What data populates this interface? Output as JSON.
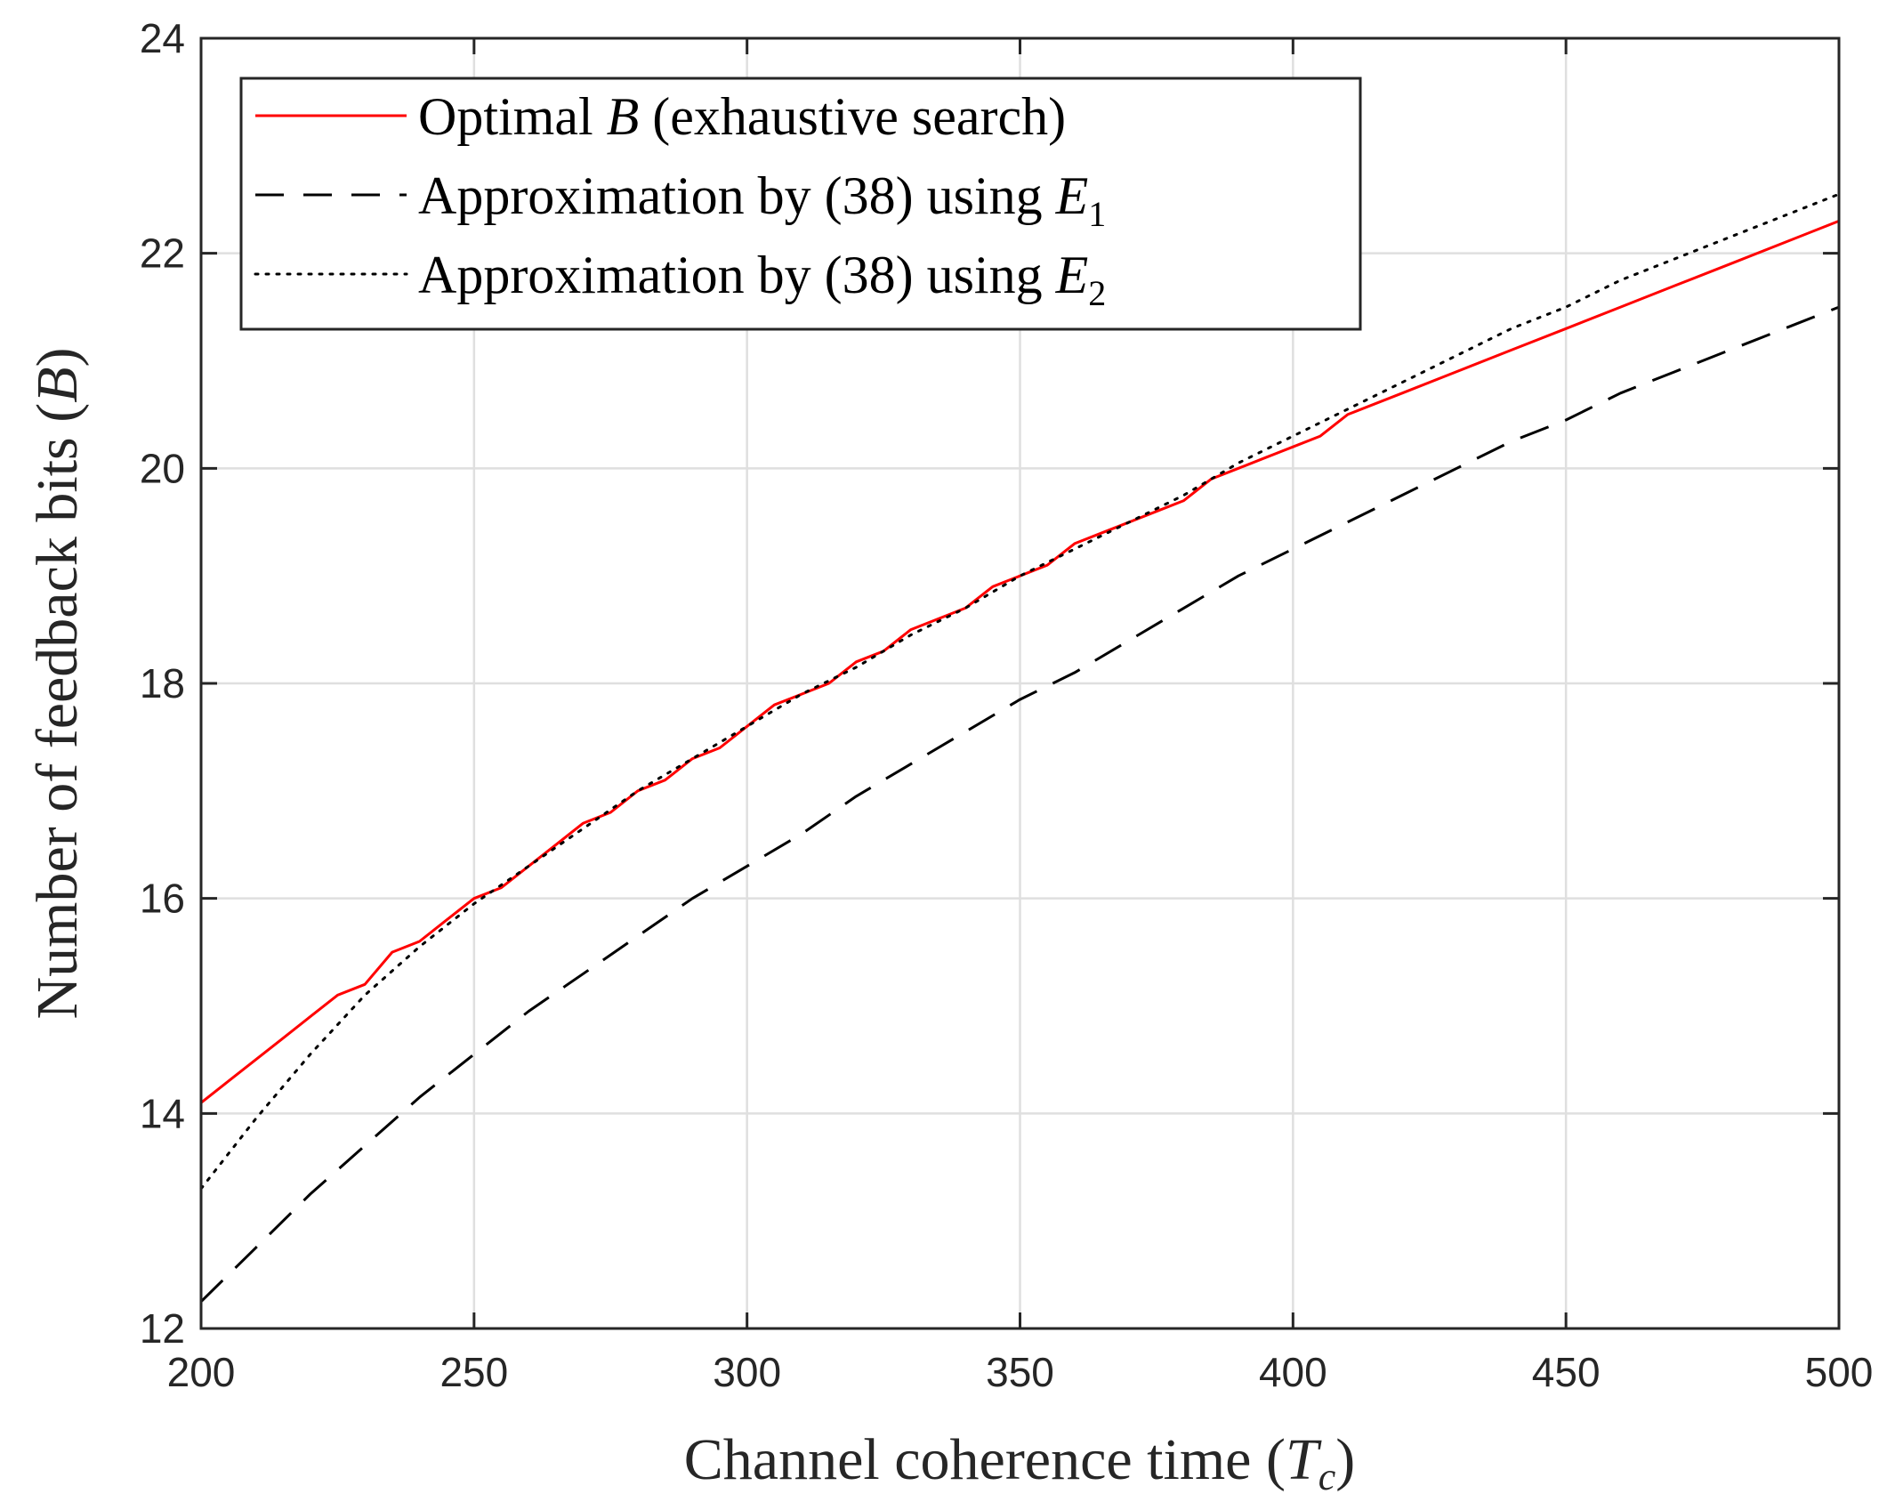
{
  "chart_data": {
    "type": "line",
    "title": "",
    "xlabel": "Channel coherence time",
    "xlabel_symbol": "T",
    "xlabel_subscript": "c",
    "ylabel": "Number of feedback bits",
    "ylabel_symbol": "B",
    "xlim": [
      200,
      500
    ],
    "ylim": [
      12,
      24
    ],
    "xticks": [
      200,
      250,
      300,
      350,
      400,
      450,
      500
    ],
    "yticks": [
      12,
      14,
      16,
      18,
      20,
      22,
      24
    ],
    "grid": true,
    "legend_position": "top-left",
    "series": [
      {
        "name": "Optimal B (exhaustive search)",
        "label_prefix": "Optimal ",
        "label_symbol": "B",
        "label_suffix": " (exhaustive search)",
        "label_subscript": "",
        "color": "#ff0000",
        "style": "solid",
        "x": [
          200,
          205,
          210,
          215,
          220,
          225,
          230,
          235,
          240,
          245,
          250,
          255,
          260,
          265,
          270,
          275,
          280,
          285,
          290,
          295,
          300,
          305,
          310,
          315,
          320,
          325,
          330,
          335,
          340,
          345,
          350,
          355,
          360,
          365,
          370,
          375,
          380,
          385,
          390,
          395,
          400,
          405,
          410,
          420,
          430,
          440,
          450,
          460,
          470,
          480,
          490,
          500
        ],
        "values": [
          14.1,
          14.3,
          14.5,
          14.7,
          14.9,
          15.1,
          15.2,
          15.5,
          15.6,
          15.8,
          16.0,
          16.1,
          16.3,
          16.5,
          16.7,
          16.8,
          17.0,
          17.1,
          17.3,
          17.4,
          17.6,
          17.8,
          17.9,
          18.0,
          18.2,
          18.3,
          18.5,
          18.6,
          18.7,
          18.9,
          19.0,
          19.1,
          19.3,
          19.4,
          19.5,
          19.6,
          19.7,
          19.9,
          20.0,
          20.1,
          20.2,
          20.3,
          20.5,
          20.7,
          20.9,
          21.1,
          21.3,
          21.5,
          21.7,
          21.9,
          22.1,
          22.3
        ]
      },
      {
        "name": "Approximation by (38) using E1",
        "label_prefix": "Approximation by (38) using ",
        "label_symbol": "E",
        "label_suffix": "",
        "label_subscript": "1",
        "color": "#000000",
        "style": "dashed",
        "x": [
          200,
          210,
          220,
          230,
          240,
          250,
          260,
          270,
          280,
          290,
          300,
          310,
          320,
          330,
          340,
          350,
          360,
          370,
          380,
          390,
          400,
          410,
          420,
          430,
          440,
          450,
          460,
          470,
          480,
          490,
          500
        ],
        "values": [
          12.25,
          12.75,
          13.25,
          13.7,
          14.15,
          14.55,
          14.95,
          15.3,
          15.65,
          16.0,
          16.3,
          16.6,
          16.95,
          17.25,
          17.55,
          17.85,
          18.1,
          18.4,
          18.7,
          19.0,
          19.25,
          19.5,
          19.75,
          20.0,
          20.25,
          20.45,
          20.7,
          20.9,
          21.1,
          21.3,
          21.5
        ]
      },
      {
        "name": "Approximation by (38) using E2",
        "label_prefix": "Approximation by (38) using ",
        "label_symbol": "E",
        "label_suffix": "",
        "label_subscript": "2",
        "color": "#000000",
        "style": "dotted",
        "x": [
          200,
          210,
          220,
          230,
          240,
          250,
          260,
          270,
          280,
          290,
          300,
          310,
          320,
          330,
          340,
          350,
          360,
          370,
          380,
          390,
          400,
          410,
          420,
          430,
          440,
          450,
          460,
          470,
          480,
          490,
          500
        ],
        "values": [
          13.3,
          13.95,
          14.55,
          15.1,
          15.55,
          15.95,
          16.3,
          16.65,
          17.0,
          17.3,
          17.6,
          17.9,
          18.15,
          18.45,
          18.7,
          19.0,
          19.25,
          19.5,
          19.75,
          20.05,
          20.3,
          20.55,
          20.8,
          21.05,
          21.3,
          21.5,
          21.75,
          21.95,
          22.15,
          22.35,
          22.55
        ]
      }
    ]
  }
}
